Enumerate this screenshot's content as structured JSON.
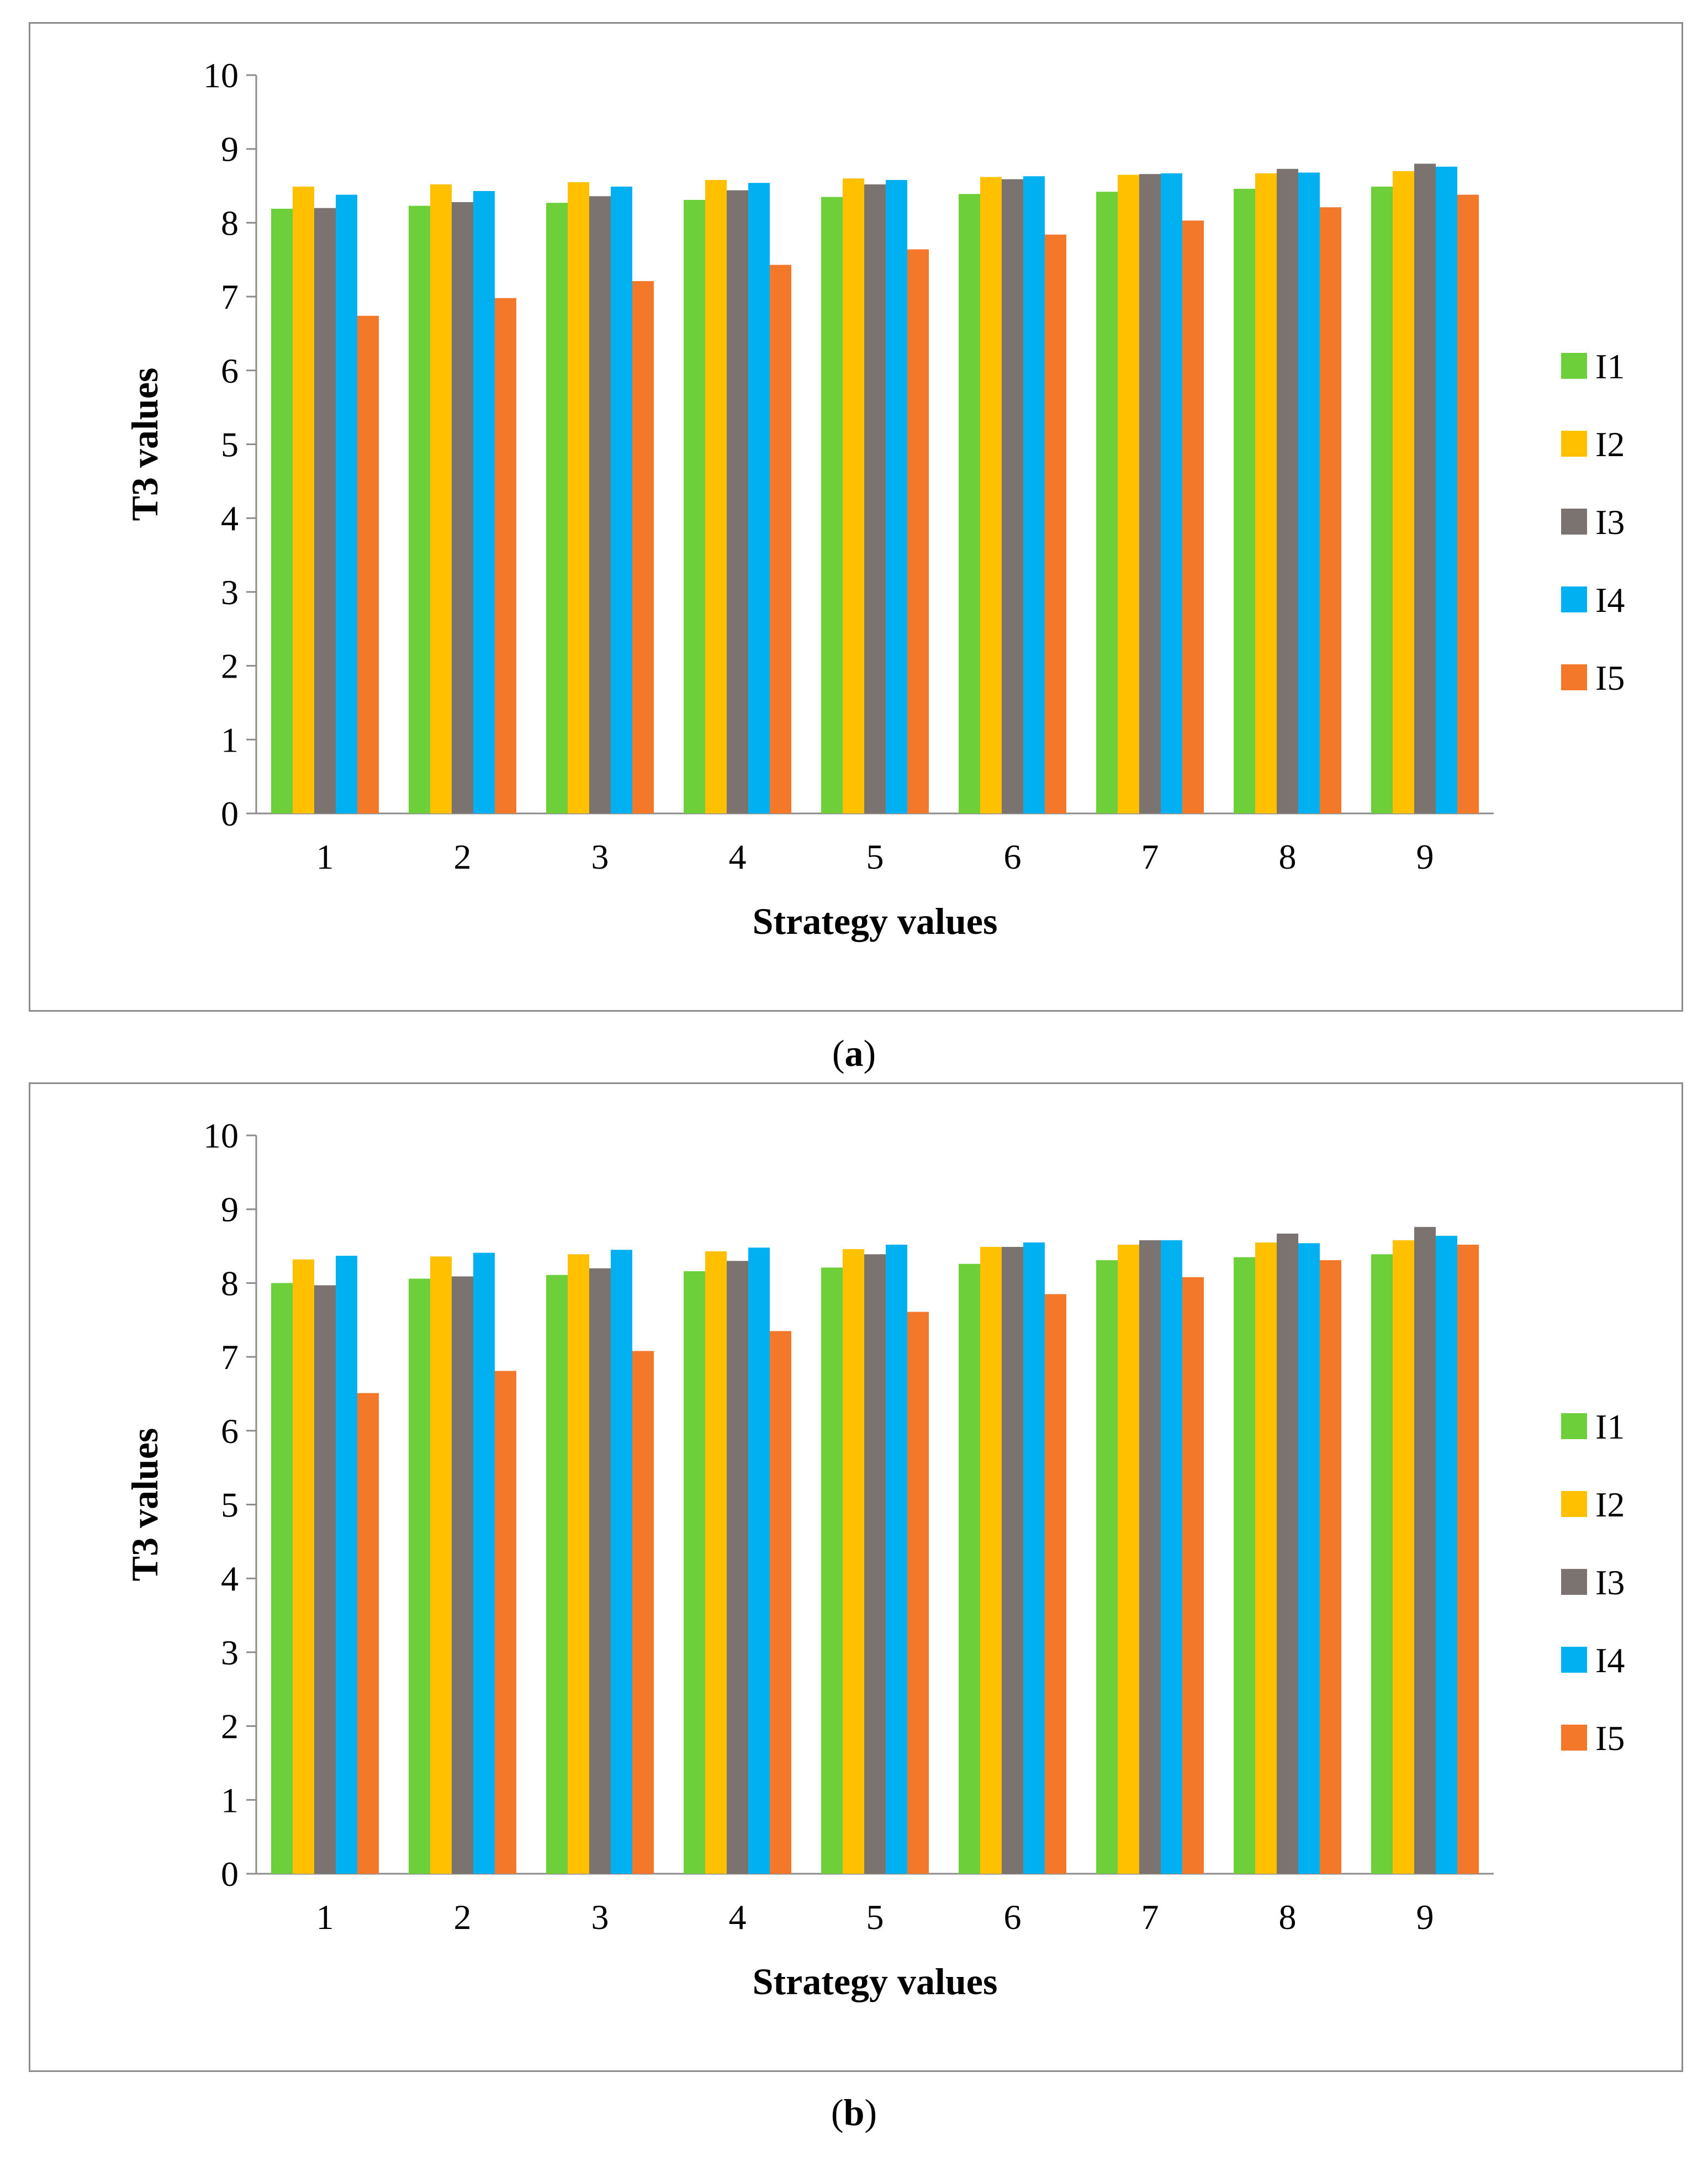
{
  "chart_data": [
    {
      "type": "bar",
      "panel": "a",
      "caption_letter": "a",
      "xlabel": "Strategy values",
      "ylabel": "T3 values",
      "ylim": [
        0,
        10
      ],
      "yticks": [
        "0",
        "1",
        "2",
        "3",
        "4",
        "5",
        "6",
        "7",
        "8",
        "9",
        "10"
      ],
      "categories": [
        "1",
        "2",
        "3",
        "4",
        "5",
        "6",
        "7",
        "8",
        "9"
      ],
      "legend_position": "right",
      "series": [
        {
          "name": "I1",
          "color": "#6dcf3a",
          "values": [
            8.19,
            8.23,
            8.27,
            8.31,
            8.35,
            8.39,
            8.42,
            8.46,
            8.49
          ]
        },
        {
          "name": "I2",
          "color": "#ffc000",
          "values": [
            8.49,
            8.52,
            8.55,
            8.58,
            8.6,
            8.62,
            8.65,
            8.67,
            8.7
          ]
        },
        {
          "name": "I3",
          "color": "#7a7370",
          "values": [
            8.2,
            8.28,
            8.36,
            8.44,
            8.52,
            8.59,
            8.66,
            8.73,
            8.8
          ]
        },
        {
          "name": "I4",
          "color": "#00b0f0",
          "values": [
            8.38,
            8.43,
            8.49,
            8.54,
            8.58,
            8.63,
            8.67,
            8.68,
            8.76
          ]
        },
        {
          "name": "I5",
          "color": "#f4782a",
          "values": [
            6.74,
            6.98,
            7.21,
            7.43,
            7.64,
            7.84,
            8.03,
            8.21,
            8.38
          ]
        }
      ]
    },
    {
      "type": "bar",
      "panel": "b",
      "caption_letter": "b",
      "xlabel": "Strategy values",
      "ylabel": "T3 values",
      "ylim": [
        0,
        10
      ],
      "yticks": [
        "0",
        "1",
        "2",
        "3",
        "4",
        "5",
        "6",
        "7",
        "8",
        "9",
        "10"
      ],
      "categories": [
        "1",
        "2",
        "3",
        "4",
        "5",
        "6",
        "7",
        "8",
        "9"
      ],
      "legend_position": "right",
      "series": [
        {
          "name": "I1",
          "color": "#6dcf3a",
          "values": [
            8.0,
            8.06,
            8.11,
            8.16,
            8.21,
            8.26,
            8.31,
            8.35,
            8.39
          ]
        },
        {
          "name": "I2",
          "color": "#ffc000",
          "values": [
            8.32,
            8.36,
            8.39,
            8.43,
            8.46,
            8.49,
            8.52,
            8.55,
            8.58
          ]
        },
        {
          "name": "I3",
          "color": "#7a7370",
          "values": [
            7.97,
            8.09,
            8.2,
            8.3,
            8.39,
            8.49,
            8.58,
            8.67,
            8.76
          ]
        },
        {
          "name": "I4",
          "color": "#00b0f0",
          "values": [
            8.37,
            8.41,
            8.45,
            8.48,
            8.52,
            8.55,
            8.58,
            8.54,
            8.64
          ]
        },
        {
          "name": "I5",
          "color": "#f4782a",
          "values": [
            6.51,
            6.81,
            7.08,
            7.35,
            7.61,
            7.85,
            8.08,
            8.31,
            8.52
          ]
        }
      ]
    }
  ]
}
